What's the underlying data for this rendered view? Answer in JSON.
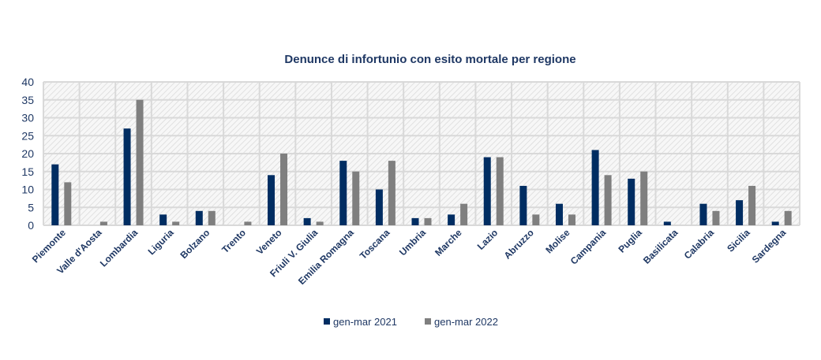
{
  "chart_data": {
    "type": "bar",
    "title": "Denunce di infortunio con esito mortale per regione",
    "xlabel": "",
    "ylabel": "",
    "ylim": [
      0,
      40
    ],
    "yticks": [
      0,
      5,
      10,
      15,
      20,
      25,
      30,
      35,
      40
    ],
    "grid": true,
    "legend_position": "bottom",
    "categories": [
      "Piemonte",
      "Valle d'Aosta",
      "Lombardia",
      "Liguria",
      "Bolzano",
      "Trento",
      "Veneto",
      "Friuli V. Giulia",
      "Emilia Romagna",
      "Toscana",
      "Umbria",
      "Marche",
      "Lazio",
      "Abruzzo",
      "Molise",
      "Campania",
      "Puglia",
      "Basilicata",
      "Calabria",
      "Sicilia",
      "Sardegna"
    ],
    "series": [
      {
        "name": "gen-mar 2021",
        "color": "#002d62",
        "values": [
          17,
          0,
          27,
          3,
          4,
          0,
          14,
          2,
          18,
          10,
          2,
          3,
          19,
          11,
          6,
          21,
          13,
          1,
          6,
          7,
          1
        ]
      },
      {
        "name": "gen-mar 2022",
        "color": "#7f7f7f",
        "values": [
          12,
          1,
          35,
          1,
          4,
          1,
          20,
          1,
          15,
          18,
          2,
          6,
          19,
          3,
          3,
          14,
          15,
          0,
          4,
          11,
          4
        ]
      }
    ]
  }
}
